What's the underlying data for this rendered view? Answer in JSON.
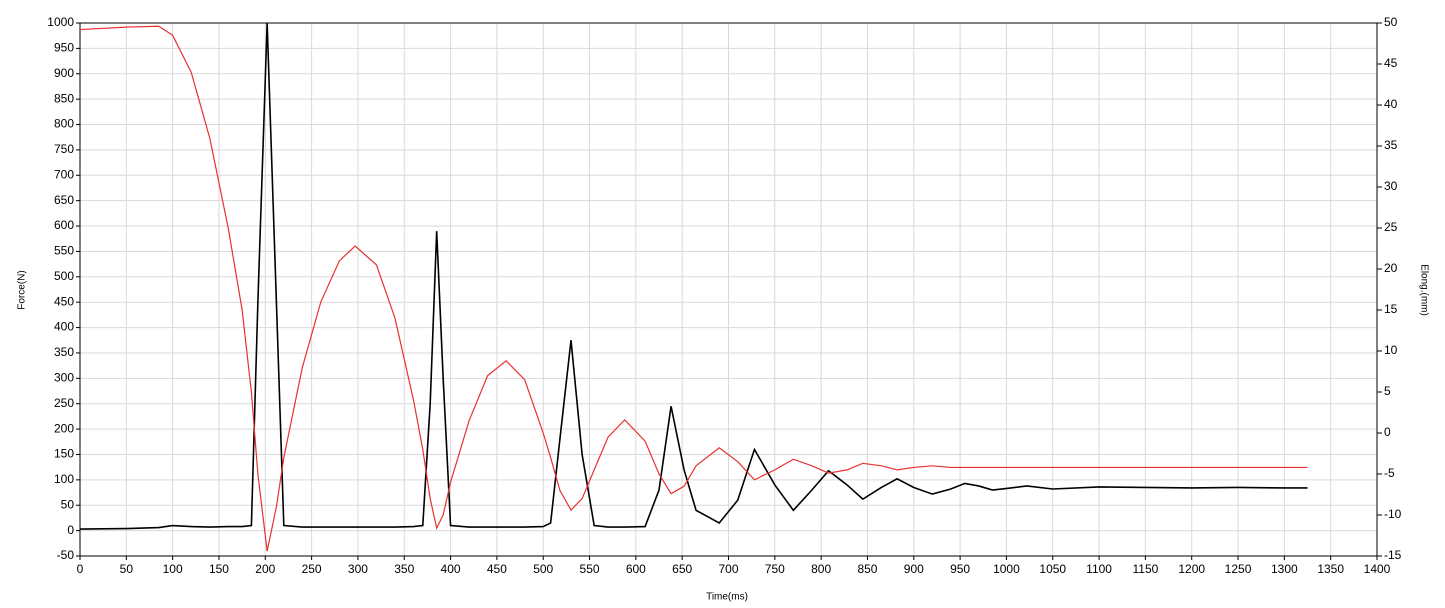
{
  "chart_data": {
    "type": "line",
    "xlabel": "Time(ms)",
    "ylabel": "Force(N)",
    "y2label": "Elong.(mm)",
    "x": [
      0,
      50,
      85,
      100,
      120,
      140,
      160,
      175,
      185,
      192,
      202,
      212,
      220,
      240,
      260,
      280,
      297,
      320,
      340,
      360,
      370,
      378,
      385,
      392,
      400,
      420,
      440,
      460,
      480,
      500,
      508,
      518,
      530,
      542,
      555,
      570,
      588,
      610,
      625,
      638,
      652,
      665,
      690,
      710,
      728,
      750,
      770,
      790,
      808,
      828,
      845,
      865,
      882,
      900,
      920,
      940,
      955,
      970,
      985,
      1005,
      1022,
      1050,
      1100,
      1150,
      1200,
      1250,
      1300,
      1325
    ],
    "series": [
      {
        "color": "#000000",
        "axis": "y",
        "values": [
          3,
          4,
          6,
          10,
          8,
          7,
          8,
          8,
          10,
          450,
          1000,
          450,
          10,
          7,
          7,
          7,
          7,
          7,
          7,
          8,
          10,
          250,
          590,
          300,
          10,
          7,
          7,
          7,
          7,
          8,
          15,
          180,
          375,
          150,
          10,
          7,
          7,
          8,
          80,
          245,
          120,
          40,
          15,
          60,
          160,
          90,
          40,
          80,
          118,
          90,
          62,
          85,
          102,
          85,
          72,
          82,
          93,
          88,
          80,
          84,
          88,
          82,
          86,
          85,
          84,
          85,
          84,
          84
        ]
      },
      {
        "color": "#e8312f",
        "axis": "y2",
        "values": [
          49.2,
          49.5,
          49.6,
          48.5,
          44,
          36,
          25,
          15,
          5,
          -5,
          -14.4,
          -9,
          -3,
          8,
          16,
          21,
          22.8,
          20.5,
          14,
          4,
          -2,
          -8,
          -11.6,
          -10,
          -6,
          1.5,
          7,
          8.8,
          6.5,
          0,
          -3,
          -7,
          -9.4,
          -8,
          -4.5,
          -0.5,
          1.6,
          -1,
          -5,
          -7.4,
          -6.5,
          -4,
          -1.8,
          -3.5,
          -5.7,
          -4.5,
          -3.2,
          -4,
          -4.9,
          -4.5,
          -3.7,
          -4,
          -4.5,
          -4.2,
          -4,
          -4.2,
          -4.2,
          -4.2,
          -4.2,
          -4.2,
          -4.2,
          -4.2,
          -4.2,
          -4.2,
          -4.2,
          -4.2,
          -4.2,
          -4.2
        ]
      }
    ],
    "xlim": [
      0,
      1400
    ],
    "xticks": [
      0,
      50,
      100,
      150,
      200,
      250,
      300,
      350,
      400,
      450,
      500,
      550,
      600,
      650,
      700,
      750,
      800,
      850,
      900,
      950,
      1000,
      1050,
      1100,
      1150,
      1200,
      1250,
      1300,
      1350,
      1400
    ],
    "ylim": [
      -50,
      1000
    ],
    "yticks": [
      -50,
      0,
      50,
      100,
      150,
      200,
      250,
      300,
      350,
      400,
      450,
      500,
      550,
      600,
      650,
      700,
      750,
      800,
      850,
      900,
      950,
      1000
    ],
    "y2lim": [
      -15,
      50
    ],
    "y2ticks": [
      -15,
      -10,
      -5,
      0,
      5,
      10,
      15,
      20,
      25,
      30,
      35,
      40,
      45,
      50
    ],
    "grid": true
  }
}
